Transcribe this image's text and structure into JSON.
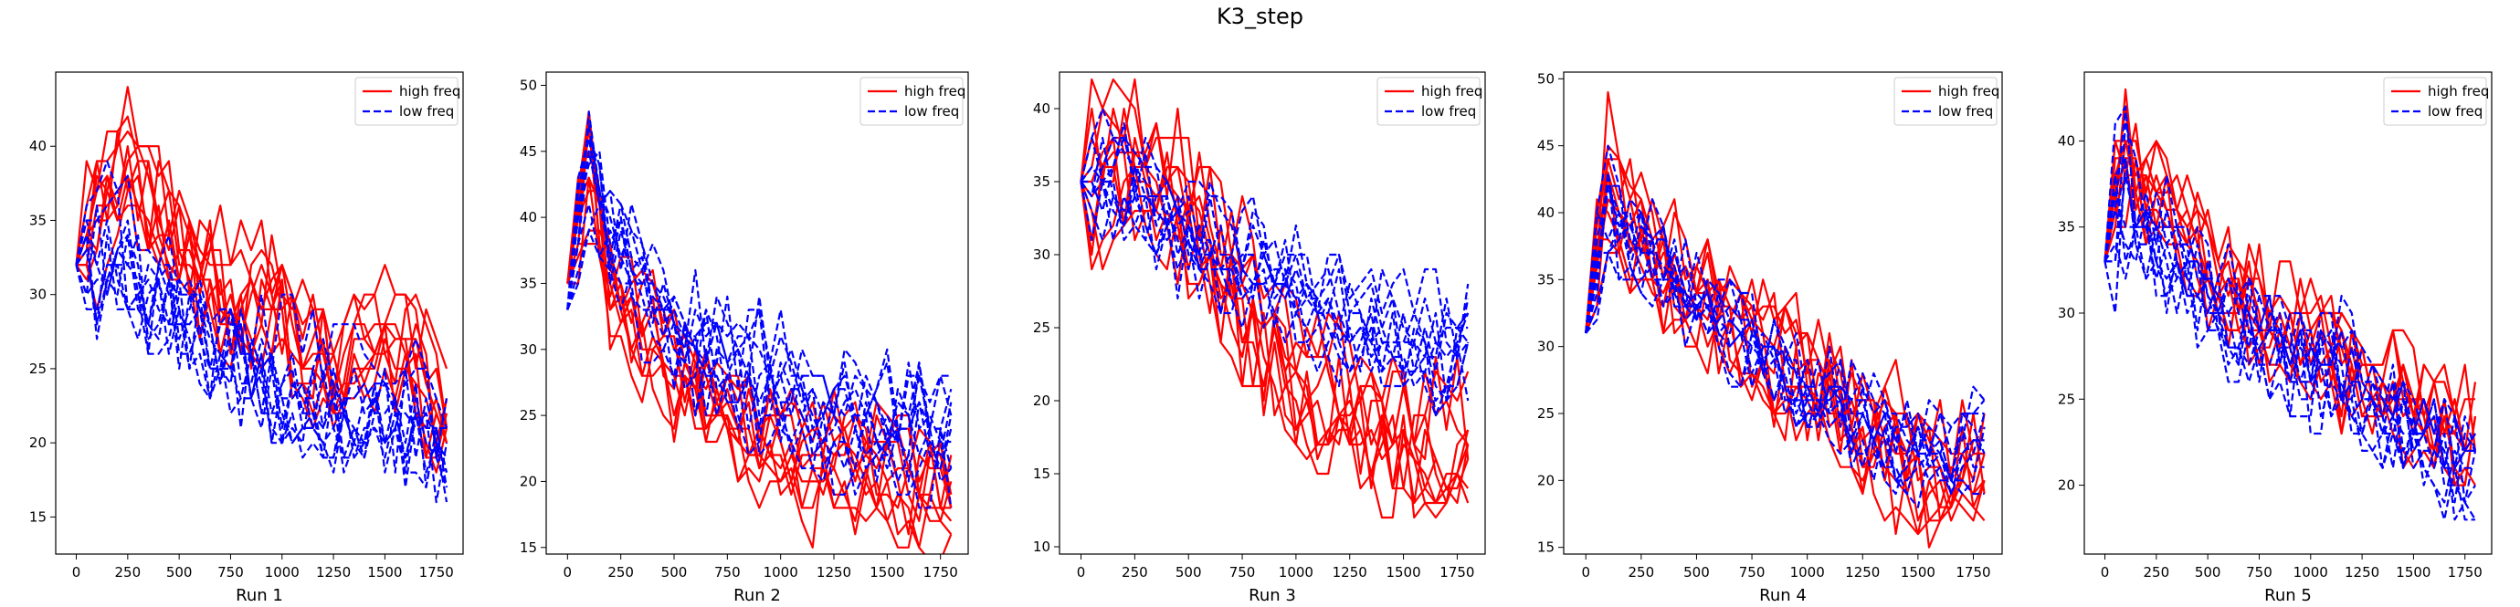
{
  "figure": {
    "title": "K3_step"
  },
  "colors": {
    "high_freq": "#ff0000",
    "low_freq": "#0000ff",
    "axes": "#000000",
    "background": "#ffffff"
  },
  "chart_data": [
    {
      "type": "line",
      "xlabel": "Run 1",
      "ylabel": "",
      "xlim": [
        -100,
        1880
      ],
      "ylim": [
        12.5,
        45
      ],
      "xticks": [
        0,
        250,
        500,
        750,
        1000,
        1250,
        1500,
        1750
      ],
      "yticks": [
        15,
        20,
        25,
        30,
        35,
        40
      ],
      "grid": false,
      "legend": "top-right",
      "series": [
        {
          "name": "high freq",
          "style": "solid",
          "color": "#ff0000",
          "x": [
            0,
            200,
            400,
            600,
            800,
            1000,
            1200,
            1400,
            1600,
            1800
          ],
          "y": [
            32,
            39,
            35,
            32,
            29,
            29,
            25,
            26,
            27,
            21
          ],
          "sample_step": 50,
          "n_lines": 10,
          "variation": 3.5,
          "seed": 11
        },
        {
          "name": "low freq",
          "style": "dashed",
          "color": "#0000ff",
          "x": [
            0,
            200,
            400,
            600,
            800,
            1000,
            1200,
            1400,
            1600,
            1800
          ],
          "y": [
            32,
            33,
            30,
            28,
            26,
            24,
            23,
            22,
            22,
            20
          ],
          "sample_step": 50,
          "n_lines": 10,
          "variation": 3.5,
          "seed": 12
        }
      ]
    },
    {
      "type": "line",
      "xlabel": "Run 2",
      "ylabel": "",
      "xlim": [
        -100,
        1880
      ],
      "ylim": [
        14.5,
        51
      ],
      "xticks": [
        0,
        250,
        500,
        750,
        1000,
        1250,
        1500,
        1750
      ],
      "yticks": [
        15,
        20,
        25,
        30,
        35,
        40,
        45,
        50
      ],
      "grid": false,
      "legend": "top-right",
      "series": [
        {
          "name": "high freq",
          "style": "solid",
          "color": "#ff0000",
          "x": [
            0,
            100,
            200,
            400,
            600,
            800,
            1000,
            1200,
            1400,
            1600,
            1800
          ],
          "y": [
            35,
            44,
            35,
            30,
            27,
            24,
            22,
            21,
            21,
            20,
            19
          ],
          "sample_step": 50,
          "n_lines": 10,
          "variation": 3.5,
          "seed": 21
        },
        {
          "name": "low freq",
          "style": "dashed",
          "color": "#0000ff",
          "x": [
            0,
            100,
            200,
            400,
            600,
            800,
            1000,
            1200,
            1400,
            1600,
            1800
          ],
          "y": [
            33,
            44,
            38,
            33,
            30,
            28,
            27,
            25,
            24,
            24,
            24
          ],
          "sample_step": 50,
          "n_lines": 10,
          "variation": 3.5,
          "seed": 22
        }
      ]
    },
    {
      "type": "line",
      "xlabel": "Run 3",
      "ylabel": "",
      "xlim": [
        -100,
        1880
      ],
      "ylim": [
        9.5,
        42.5
      ],
      "xticks": [
        0,
        250,
        500,
        750,
        1000,
        1250,
        1500,
        1750
      ],
      "yticks": [
        10,
        15,
        20,
        25,
        30,
        35,
        40
      ],
      "grid": false,
      "legend": "top-right",
      "series": [
        {
          "name": "high freq",
          "style": "solid",
          "color": "#ff0000",
          "x": [
            0,
            200,
            400,
            600,
            800,
            1000,
            1200,
            1400,
            1600,
            1800
          ],
          "y": [
            35,
            37,
            35,
            31,
            26,
            22,
            20,
            18,
            17,
            17
          ],
          "sample_step": 50,
          "n_lines": 10,
          "variation": 4.0,
          "seed": 31
        },
        {
          "name": "low freq",
          "style": "dashed",
          "color": "#0000ff",
          "x": [
            0,
            200,
            400,
            600,
            800,
            1000,
            1200,
            1400,
            1600,
            1800
          ],
          "y": [
            35,
            35,
            33,
            31,
            29,
            28,
            26,
            25,
            24,
            24
          ],
          "sample_step": 50,
          "n_lines": 10,
          "variation": 3.0,
          "seed": 32
        }
      ]
    },
    {
      "type": "line",
      "xlabel": "Run 4",
      "ylabel": "",
      "xlim": [
        -100,
        1880
      ],
      "ylim": [
        14.5,
        50.5
      ],
      "xticks": [
        0,
        250,
        500,
        750,
        1000,
        1250,
        1500,
        1750
      ],
      "yticks": [
        15,
        20,
        25,
        30,
        35,
        40,
        45,
        50
      ],
      "grid": false,
      "legend": "top-right",
      "series": [
        {
          "name": "high freq",
          "style": "solid",
          "color": "#ff0000",
          "x": [
            0,
            100,
            200,
            400,
            600,
            800,
            1000,
            1200,
            1400,
            1600,
            1800
          ],
          "y": [
            31,
            42,
            40,
            36,
            33,
            30,
            28,
            25,
            22,
            20,
            21
          ],
          "sample_step": 50,
          "n_lines": 10,
          "variation": 4.0,
          "seed": 41
        },
        {
          "name": "low freq",
          "style": "dashed",
          "color": "#0000ff",
          "x": [
            0,
            100,
            200,
            400,
            600,
            800,
            1000,
            1200,
            1400,
            1600,
            1800
          ],
          "y": [
            31,
            40,
            38,
            35,
            32,
            29,
            27,
            25,
            23,
            22,
            23
          ],
          "sample_step": 50,
          "n_lines": 10,
          "variation": 3.0,
          "seed": 42
        }
      ]
    },
    {
      "type": "line",
      "xlabel": "Run 5",
      "ylabel": "",
      "xlim": [
        -100,
        1880
      ],
      "ylim": [
        16,
        44
      ],
      "xticks": [
        0,
        250,
        500,
        750,
        1000,
        1250,
        1500,
        1750
      ],
      "yticks": [
        20,
        25,
        30,
        35,
        40
      ],
      "grid": false,
      "legend": "top-right",
      "series": [
        {
          "name": "high freq",
          "style": "solid",
          "color": "#ff0000",
          "x": [
            0,
            100,
            200,
            400,
            600,
            800,
            1000,
            1200,
            1400,
            1600,
            1800
          ],
          "y": [
            33,
            39,
            38,
            35,
            32,
            30,
            29,
            27,
            26,
            24,
            23
          ],
          "sample_step": 50,
          "n_lines": 10,
          "variation": 2.5,
          "seed": 51
        },
        {
          "name": "low freq",
          "style": "dashed",
          "color": "#0000ff",
          "x": [
            0,
            100,
            200,
            400,
            600,
            800,
            1000,
            1200,
            1400,
            1600,
            1800
          ],
          "y": [
            33,
            37,
            36,
            33,
            31,
            29,
            28,
            27,
            25,
            23,
            22
          ],
          "sample_step": 50,
          "n_lines": 10,
          "variation": 2.8,
          "seed": 52
        }
      ]
    }
  ]
}
